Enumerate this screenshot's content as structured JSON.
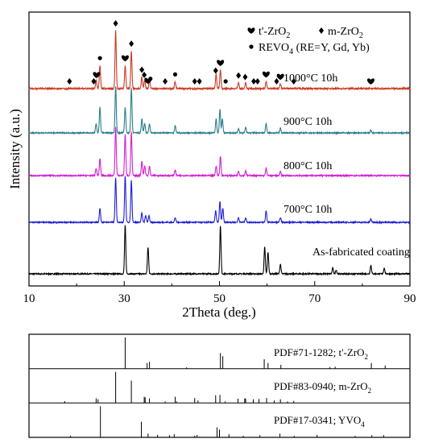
{
  "chart_data": [
    {
      "type": "line",
      "xlabel": "2Theta (deg.)",
      "ylabel": "Intensity (a.u.)",
      "xlim": [
        10,
        90
      ],
      "xticks": [
        10,
        30,
        50,
        70,
        90
      ],
      "legend": {
        "placement": "top-right",
        "entries": [
          {
            "marker": "heart",
            "label": "t'-ZrO",
            "sub": "2"
          },
          {
            "marker": "diamond",
            "label": "m-ZrO",
            "sub": "2"
          },
          {
            "marker": "circle",
            "label": "REVO",
            "sub": "4",
            "suffix": " (RE=Y, Gd, Yb)"
          }
        ]
      },
      "series": [
        {
          "name": "As-fabricated coating",
          "color": "#000000",
          "peaks": [
            [
              30.2,
              1.0
            ],
            [
              35.0,
              0.55
            ],
            [
              50.2,
              1.0
            ],
            [
              59.5,
              0.55
            ],
            [
              60.2,
              0.45
            ],
            [
              62.8,
              0.2
            ],
            [
              73.8,
              0.12
            ],
            [
              74.5,
              0.08
            ],
            [
              81.8,
              0.18
            ],
            [
              84.6,
              0.12
            ]
          ]
        },
        {
          "name": "700°C 10h",
          "color": "#1f1fd6",
          "peaks": [
            [
              24.9,
              0.3
            ],
            [
              28.2,
              0.95
            ],
            [
              30.2,
              1.0
            ],
            [
              31.5,
              0.9
            ],
            [
              33.7,
              0.2
            ],
            [
              34.5,
              0.15
            ],
            [
              35.2,
              0.15
            ],
            [
              40.7,
              0.1
            ],
            [
              49.2,
              0.25
            ],
            [
              50.1,
              0.45
            ],
            [
              50.7,
              0.3
            ],
            [
              54.0,
              0.1
            ],
            [
              55.5,
              0.1
            ],
            [
              59.8,
              0.25
            ],
            [
              62.8,
              0.1
            ],
            [
              81.8,
              0.07
            ]
          ]
        },
        {
          "name": "800°C 10h",
          "color": "#d21fd2",
          "peaks": [
            [
              24.1,
              0.15
            ],
            [
              24.9,
              0.35
            ],
            [
              28.2,
              1.0
            ],
            [
              30.2,
              0.85
            ],
            [
              31.5,
              0.9
            ],
            [
              33.7,
              0.3
            ],
            [
              34.3,
              0.2
            ],
            [
              35.3,
              0.2
            ],
            [
              40.7,
              0.12
            ],
            [
              49.3,
              0.2
            ],
            [
              50.2,
              0.4
            ],
            [
              54.0,
              0.1
            ],
            [
              55.5,
              0.1
            ],
            [
              59.8,
              0.15
            ],
            [
              62.8,
              0.08
            ]
          ]
        },
        {
          "name": "900°C 10h",
          "color": "#2a7d8c",
          "peaks": [
            [
              24.1,
              0.2
            ],
            [
              24.9,
              0.55
            ],
            [
              28.2,
              1.0
            ],
            [
              30.2,
              0.55
            ],
            [
              31.5,
              0.95
            ],
            [
              33.7,
              0.3
            ],
            [
              34.3,
              0.2
            ],
            [
              35.3,
              0.2
            ],
            [
              40.7,
              0.15
            ],
            [
              49.3,
              0.3
            ],
            [
              50.1,
              0.5
            ],
            [
              50.6,
              0.3
            ],
            [
              54.0,
              0.1
            ],
            [
              55.5,
              0.12
            ],
            [
              59.8,
              0.2
            ],
            [
              62.8,
              0.1
            ],
            [
              81.8,
              0.06
            ]
          ]
        },
        {
          "name": "1000°C 10h",
          "color": "#cc3a22",
          "peaks": [
            [
              24.1,
              0.15
            ],
            [
              24.9,
              0.4
            ],
            [
              28.2,
              1.0
            ],
            [
              30.2,
              0.4
            ],
            [
              31.5,
              0.65
            ],
            [
              33.7,
              0.2
            ],
            [
              34.3,
              0.15
            ],
            [
              35.3,
              0.15
            ],
            [
              40.7,
              0.12
            ],
            [
              49.3,
              0.25
            ],
            [
              50.2,
              0.32
            ],
            [
              54.0,
              0.1
            ],
            [
              55.5,
              0.1
            ],
            [
              59.8,
              0.12
            ],
            [
              62.8,
              0.08
            ]
          ]
        }
      ],
      "markers": [
        {
          "type": "diamond",
          "x": 18.5
        },
        {
          "type": "diamond",
          "x": 23.6
        },
        {
          "type": "heart",
          "x": 24.2
        },
        {
          "type": "circle",
          "x": 24.9
        },
        {
          "type": "diamond",
          "x": 28.2
        },
        {
          "type": "heart",
          "x": 30.2
        },
        {
          "type": "diamond",
          "x": 31.5
        },
        {
          "type": "diamond",
          "x": 33.7
        },
        {
          "type": "diamond",
          "x": 34.2
        },
        {
          "type": "heart",
          "x": 35.0
        },
        {
          "type": "circle",
          "x": 35.5
        },
        {
          "type": "diamond",
          "x": 38.6
        },
        {
          "type": "circle",
          "x": 40.7
        },
        {
          "type": "diamond",
          "x": 44.8
        },
        {
          "type": "diamond",
          "x": 45.8
        },
        {
          "type": "diamond",
          "x": 49.2
        },
        {
          "type": "heart",
          "x": 50.2
        },
        {
          "type": "circle",
          "x": 51.3
        },
        {
          "type": "diamond",
          "x": 54.0
        },
        {
          "type": "diamond",
          "x": 55.4
        },
        {
          "type": "diamond",
          "x": 57.2
        },
        {
          "type": "diamond",
          "x": 58.0
        },
        {
          "type": "heart",
          "x": 59.8
        },
        {
          "type": "diamond",
          "x": 62.0
        },
        {
          "type": "heart",
          "x": 62.8
        },
        {
          "type": "diamond",
          "x": 65.6
        },
        {
          "type": "heart",
          "x": 81.8
        }
      ]
    },
    {
      "type": "bar",
      "xlim": [
        10,
        90
      ],
      "references": [
        {
          "label": "PDF#71-1282; t'-ZrO",
          "sub": "2",
          "lines": [
            [
              30.2,
              1.0
            ],
            [
              34.8,
              0.18
            ],
            [
              35.3,
              0.22
            ],
            [
              43.1,
              0.04
            ],
            [
              50.2,
              0.5
            ],
            [
              50.7,
              0.4
            ],
            [
              59.4,
              0.3
            ],
            [
              60.2,
              0.18
            ],
            [
              62.9,
              0.12
            ],
            [
              73.2,
              0.05
            ],
            [
              74.3,
              0.06
            ],
            [
              81.9,
              0.18
            ],
            [
              84.8,
              0.1
            ]
          ]
        },
        {
          "label": "PDF#83-0940; m-ZrO",
          "sub": "2",
          "lines": [
            [
              17.5,
              0.06
            ],
            [
              24.1,
              0.15
            ],
            [
              24.5,
              0.12
            ],
            [
              28.2,
              1.0
            ],
            [
              31.5,
              0.72
            ],
            [
              34.2,
              0.2
            ],
            [
              34.4,
              0.18
            ],
            [
              35.3,
              0.15
            ],
            [
              38.6,
              0.05
            ],
            [
              40.7,
              0.2
            ],
            [
              41.0,
              0.05
            ],
            [
              44.8,
              0.16
            ],
            [
              45.5,
              0.08
            ],
            [
              49.2,
              0.25
            ],
            [
              50.1,
              0.26
            ],
            [
              51.2,
              0.05
            ],
            [
              53.9,
              0.14
            ],
            [
              55.3,
              0.15
            ],
            [
              55.5,
              0.14
            ],
            [
              57.1,
              0.12
            ],
            [
              58.3,
              0.13
            ],
            [
              59.9,
              0.16
            ],
            [
              61.5,
              0.08
            ],
            [
              62.8,
              0.12
            ],
            [
              64.3,
              0.05
            ],
            [
              65.6,
              0.07
            ]
          ]
        },
        {
          "label": "PDF#17-0341; YVO",
          "sub": "4",
          "lines": [
            [
              18.7,
              0.05
            ],
            [
              25.0,
              1.0
            ],
            [
              33.6,
              0.5
            ],
            [
              35.0,
              0.12
            ],
            [
              37.0,
              0.08
            ],
            [
              39.5,
              0.07
            ],
            [
              40.5,
              0.1
            ],
            [
              44.8,
              0.05
            ],
            [
              45.3,
              0.08
            ],
            [
              49.5,
              0.32
            ],
            [
              50.0,
              0.25
            ],
            [
              52.0,
              0.1
            ],
            [
              55.0,
              0.05
            ],
            [
              58.5,
              0.07
            ],
            [
              62.7,
              0.12
            ],
            [
              65.7,
              0.05
            ],
            [
              70.5,
              0.08
            ],
            [
              78.5,
              0.05
            ],
            [
              82.0,
              0.07
            ],
            [
              84.5,
              0.07
            ]
          ]
        }
      ]
    }
  ]
}
